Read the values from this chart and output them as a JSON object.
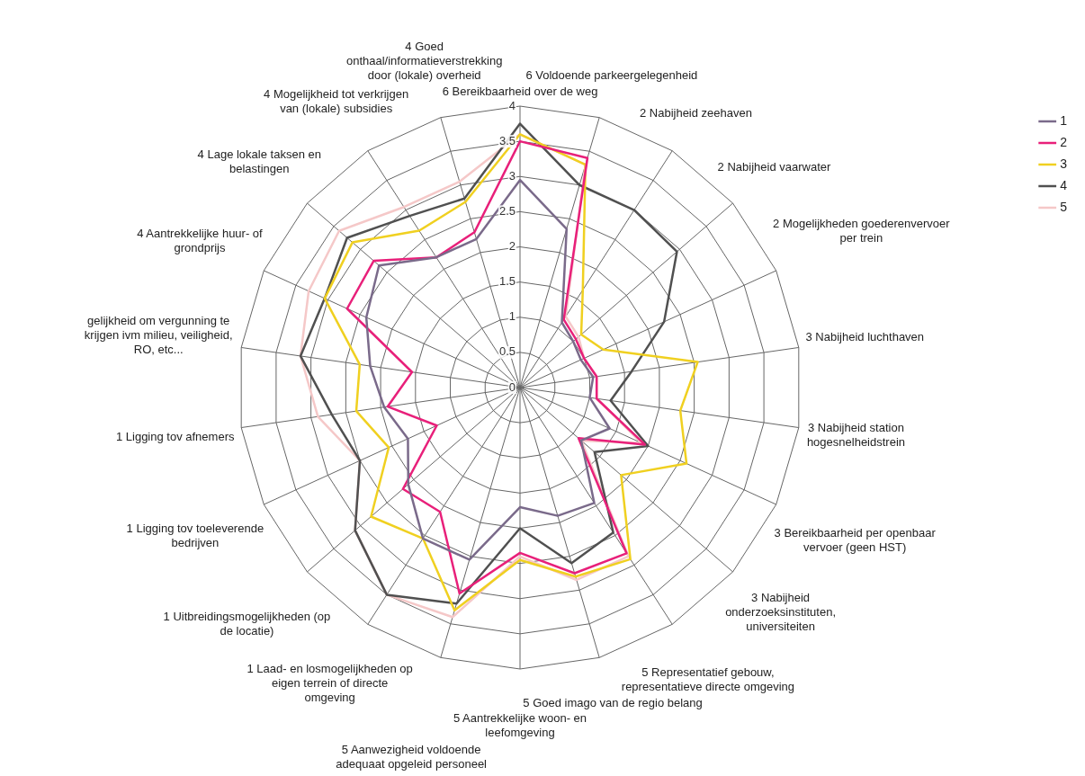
{
  "chart_data": {
    "type": "radar",
    "categories": [
      "6 Bereikbaarheid over de weg",
      "6 Voldoende parkeergelegenheid",
      "2 Nabijheid zeehaven",
      "2 Nabijheid vaarwater",
      "2 Mogelijkheden goederenvervoer per trein",
      "3 Nabijheid luchthaven",
      "3 Nabijheid station hogesnelheidstrein",
      "3 Bereikbaarheid per openbaar vervoer (geen HST)",
      "3 Nabijheid onderzoeksinstituten, universiteiten",
      "5 Representatief gebouw, representatieve directe omgeving",
      "5 Goed imago van de regio belang",
      "5 Aantrekkelijke woon- en leefomgeving",
      "5 Aanwezigheid voldoende adequaat opgeleid personeel",
      "1 Laad- en losmogelijkheden op eigen terrein of directe omgeving",
      "1 Uitbreidingsmogelijkheden (op de locatie)",
      "1 Ligging tov toeleverende bedrijven",
      "1 Ligging tov afnemers",
      "gelijkheid om vergunning te krijgen ivm milieu, veiligheid, RO, etc...",
      "4 Aantrekkelijke huur- of grondprijs",
      "4 Lage lokale taksen en belastingen",
      "4 Mogelijkheid tot verkrijgen van (lokale) subsidies",
      "4 Goed onthaal/informatieverstrekking door (lokale) overheid"
    ],
    "series": [
      {
        "name": "1",
        "color": "#7a6a8a",
        "values": [
          2.95,
          2.35,
          1.1,
          1.0,
          0.95,
          1.05,
          1.0,
          1.4,
          1.15,
          1.95,
          1.9,
          1.7,
          2.55,
          2.55,
          2.1,
          1.75,
          1.95,
          2.15,
          2.4,
          2.65,
          2.2,
          2.2
        ]
      },
      {
        "name": "2",
        "color": "#e8207a",
        "values": [
          3.5,
          3.4,
          1.15,
          1.05,
          1.0,
          1.1,
          1.1,
          1.95,
          1.1,
          2.8,
          2.75,
          2.35,
          3.05,
          2.1,
          2.2,
          1.3,
          1.9,
          1.55,
          2.7,
          2.75,
          2.2,
          2.3
        ]
      },
      {
        "name": "3",
        "color": "#f0d020",
        "values": [
          3.6,
          3.3,
          1.65,
          1.15,
          1.3,
          2.55,
          2.3,
          2.6,
          1.9,
          2.9,
          2.8,
          2.45,
          3.3,
          2.55,
          2.8,
          2.05,
          2.35,
          2.3,
          3.05,
          3.15,
          2.65,
          2.75
        ]
      },
      {
        "name": "4",
        "color": "#505050",
        "values": [
          3.75,
          3.0,
          3.0,
          2.95,
          2.25,
          1.6,
          1.3,
          2.0,
          1.4,
          2.45,
          2.6,
          2.0,
          3.2,
          3.5,
          3.1,
          2.5,
          2.7,
          3.15,
          3.05,
          3.25,
          2.9,
          2.8
        ]
      },
      {
        "name": "5",
        "color": "#f5c8c8",
        "values": [
          3.6,
          3.3,
          1.2,
          1.1,
          1.0,
          1.1,
          1.1,
          1.9,
          1.15,
          2.85,
          2.85,
          2.4,
          3.4,
          3.5,
          3.1,
          2.5,
          2.9,
          3.15,
          3.3,
          3.4,
          3.05,
          3.05
        ]
      }
    ],
    "ylim": [
      0,
      4
    ],
    "yticks": [
      0,
      0.5,
      1,
      1.5,
      2,
      2.5,
      3,
      3.5,
      4
    ],
    "grid": true,
    "legend": "top right",
    "marker": "none",
    "line_style": "solid"
  }
}
